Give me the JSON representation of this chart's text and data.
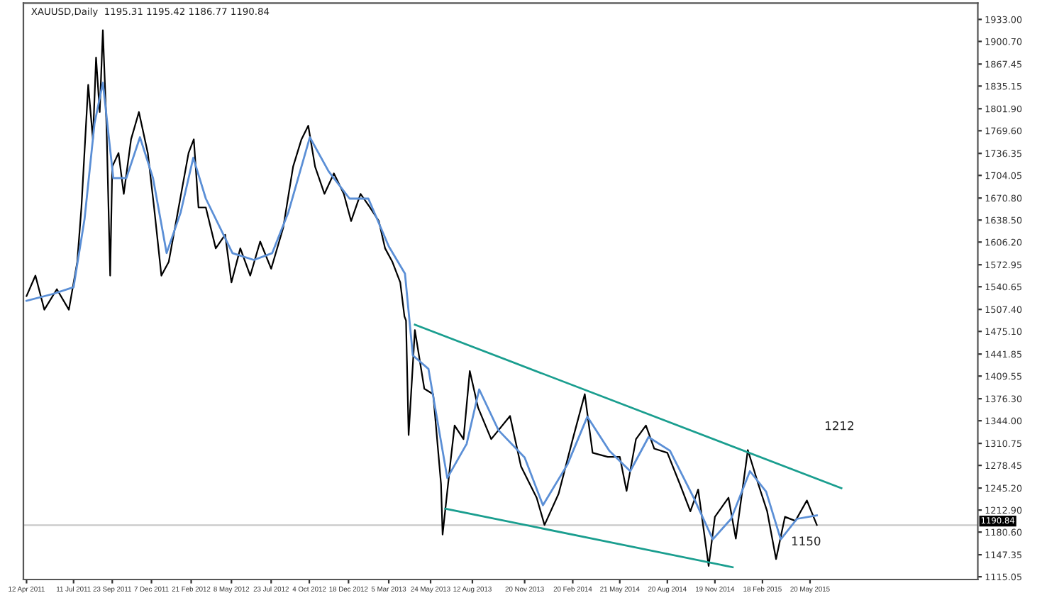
{
  "chart_data": {
    "type": "line",
    "title": "XAUUSD,Daily  1195.31 1195.42 1186.77 1190.84",
    "xlim": [
      "2011-04-06",
      "2016-04-05"
    ],
    "ylim": [
      1111,
      1957
    ],
    "xticks": [
      {
        "value": "2011-04-12",
        "label": "12 Apr 2011"
      },
      {
        "value": "2011-07-11",
        "label": "11 Jul 2011"
      },
      {
        "value": "2011-09-23",
        "label": "23 Sep 2011"
      },
      {
        "value": "2011-12-07",
        "label": "7 Dec 2011"
      },
      {
        "value": "2012-02-21",
        "label": "21 Feb 2012"
      },
      {
        "value": "2012-05-08",
        "label": "8 May 2012"
      },
      {
        "value": "2012-07-23",
        "label": "23 Jul 2012"
      },
      {
        "value": "2012-10-04",
        "label": "4 Oct 2012"
      },
      {
        "value": "2012-12-18",
        "label": "18 Dec 2012"
      },
      {
        "value": "2013-03-05",
        "label": "5 Mar 2013"
      },
      {
        "value": "2013-05-24",
        "label": "24 May 2013"
      },
      {
        "value": "2013-08-12",
        "label": "12 Aug 2013"
      },
      {
        "value": "2013-11-20",
        "label": "20 Nov 2013"
      },
      {
        "value": "2014-02-20",
        "label": "20 Feb 2014"
      },
      {
        "value": "2014-05-21",
        "label": "21 May 2014"
      },
      {
        "value": "2014-08-20",
        "label": "20 Aug 2014"
      },
      {
        "value": "2014-11-19",
        "label": "19 Nov 2014"
      },
      {
        "value": "2015-02-18",
        "label": "18 Feb 2015"
      },
      {
        "value": "2015-05-20",
        "label": "20 May 2015"
      }
    ],
    "yticks": [
      {
        "value": 1933.0,
        "label": "1933.00"
      },
      {
        "value": 1900.7,
        "label": "1900.70"
      },
      {
        "value": 1867.45,
        "label": "1867.45"
      },
      {
        "value": 1835.15,
        "label": "1835.15"
      },
      {
        "value": 1801.9,
        "label": "1801.90"
      },
      {
        "value": 1769.6,
        "label": "1769.60"
      },
      {
        "value": 1736.35,
        "label": "1736.35"
      },
      {
        "value": 1704.05,
        "label": "1704.05"
      },
      {
        "value": 1670.8,
        "label": "1670.80"
      },
      {
        "value": 1638.5,
        "label": "1638.50"
      },
      {
        "value": 1606.2,
        "label": "1606.20"
      },
      {
        "value": 1572.95,
        "label": "1572.95"
      },
      {
        "value": 1540.65,
        "label": "1540.65"
      },
      {
        "value": 1507.4,
        "label": "1507.40"
      },
      {
        "value": 1475.1,
        "label": "1475.10"
      },
      {
        "value": 1441.85,
        "label": "1441.85"
      },
      {
        "value": 1409.55,
        "label": "1409.55"
      },
      {
        "value": 1376.3,
        "label": "1376.30"
      },
      {
        "value": 1344.0,
        "label": "1344.00"
      },
      {
        "value": 1310.75,
        "label": "1310.75"
      },
      {
        "value": 1278.45,
        "label": "1278.45"
      },
      {
        "value": 1245.2,
        "label": "1245.20"
      },
      {
        "value": 1212.9,
        "label": "1212.90"
      },
      {
        "value": 1180.6,
        "label": "1180.60"
      },
      {
        "value": 1147.35,
        "label": "1147.35"
      },
      {
        "value": 1115.05,
        "label": "1115.05"
      }
    ],
    "ref_lines": [
      {
        "axis": "y",
        "value": 1190.84,
        "label": "1190.84",
        "color": "#c8c8c8"
      }
    ],
    "annotations": [
      "1212",
      "1150"
    ],
    "grid": false,
    "legend": false,
    "marker": "none",
    "line_style": "solid",
    "series": [
      {
        "color": "#000000",
        "x": [
          "2011-04-12",
          "2011-04-29",
          "2011-05-16",
          "2011-06-09",
          "2011-07-02",
          "2011-07-18",
          "2011-07-26",
          "2011-08-08",
          "2011-08-17",
          "2011-08-23",
          "2011-08-30",
          "2011-09-05",
          "2011-09-12",
          "2011-09-19",
          "2011-09-23",
          "2011-10-05",
          "2011-10-15",
          "2011-10-29",
          "2011-11-13",
          "2011-11-30",
          "2011-12-12",
          "2011-12-26",
          "2012-01-09",
          "2012-01-28",
          "2012-02-16",
          "2012-02-26",
          "2012-03-06",
          "2012-03-20",
          "2012-04-08",
          "2012-04-26",
          "2012-05-08",
          "2012-05-25",
          "2012-06-13",
          "2012-07-02",
          "2012-07-23",
          "2012-08-15",
          "2012-09-03",
          "2012-09-19",
          "2012-10-02",
          "2012-10-15",
          "2012-11-02",
          "2012-11-20",
          "2012-12-09",
          "2012-12-23",
          "2013-01-10",
          "2013-01-28",
          "2013-02-14",
          "2013-02-26",
          "2013-03-12",
          "2013-03-27",
          "2013-04-04",
          "2013-04-07",
          "2013-04-12",
          "2013-04-24",
          "2013-05-12",
          "2013-05-29",
          "2013-06-13",
          "2013-06-16",
          "2013-07-01",
          "2013-07-09",
          "2013-07-26",
          "2013-08-07",
          "2013-08-23",
          "2013-09-17",
          "2013-10-23",
          "2013-11-13",
          "2013-12-13",
          "2013-12-28",
          "2014-01-24",
          "2014-02-20",
          "2014-03-15",
          "2014-03-30",
          "2014-04-28",
          "2014-05-21",
          "2014-06-03",
          "2014-06-21",
          "2014-07-10",
          "2014-07-26",
          "2014-08-20",
          "2014-09-13",
          "2014-10-03",
          "2014-10-18",
          "2014-11-07",
          "2014-11-19",
          "2014-12-15",
          "2014-12-29",
          "2015-01-21",
          "2015-02-10",
          "2015-02-27",
          "2015-03-16",
          "2015-04-02",
          "2015-04-22",
          "2015-05-14",
          "2015-06-02"
        ],
        "values": [
          1527,
          1557,
          1507,
          1537,
          1507,
          1577,
          1657,
          1837,
          1757,
          1877,
          1797,
          1917,
          1777,
          1557,
          1717,
          1737,
          1677,
          1757,
          1797,
          1737,
          1657,
          1557,
          1577,
          1657,
          1737,
          1757,
          1657,
          1657,
          1597,
          1617,
          1547,
          1597,
          1557,
          1607,
          1567,
          1627,
          1717,
          1757,
          1777,
          1717,
          1677,
          1707,
          1677,
          1637,
          1677,
          1657,
          1637,
          1597,
          1577,
          1547,
          1497,
          1491,
          1323,
          1477,
          1391,
          1383,
          1251,
          1177,
          1283,
          1337,
          1317,
          1417,
          1363,
          1317,
          1351,
          1277,
          1231,
          1191,
          1237,
          1317,
          1383,
          1297,
          1291,
          1291,
          1241,
          1317,
          1337,
          1303,
          1297,
          1251,
          1211,
          1243,
          1131,
          1203,
          1231,
          1171,
          1301,
          1251,
          1211,
          1141,
          1203,
          1197,
          1227,
          1191
        ]
      },
      {
        "color": "#5b8fd6",
        "x": [
          "2011-04-12",
          "2011-06-01",
          "2011-07-11",
          "2011-08-01",
          "2011-08-20",
          "2011-09-05",
          "2011-09-25",
          "2011-10-20",
          "2011-11-15",
          "2011-12-10",
          "2012-01-05",
          "2012-02-01",
          "2012-02-25",
          "2012-03-20",
          "2012-05-10",
          "2012-06-20",
          "2012-07-25",
          "2012-08-25",
          "2012-10-05",
          "2012-11-10",
          "2012-12-20",
          "2013-01-25",
          "2013-03-05",
          "2013-04-05",
          "2013-04-20",
          "2013-05-20",
          "2013-06-25",
          "2013-08-01",
          "2013-08-25",
          "2013-10-01",
          "2013-11-20",
          "2013-12-25",
          "2014-02-10",
          "2014-03-20",
          "2014-05-01",
          "2014-06-10",
          "2014-07-15",
          "2014-08-25",
          "2014-10-10",
          "2014-11-15",
          "2014-12-20",
          "2015-01-25",
          "2015-02-25",
          "2015-03-25",
          "2015-04-25",
          "2015-06-02"
        ],
        "values": [
          1520,
          1530,
          1540,
          1640,
          1780,
          1840,
          1700,
          1700,
          1760,
          1700,
          1590,
          1650,
          1730,
          1670,
          1590,
          1580,
          1590,
          1650,
          1760,
          1710,
          1670,
          1670,
          1600,
          1560,
          1440,
          1420,
          1260,
          1310,
          1390,
          1330,
          1290,
          1220,
          1280,
          1350,
          1300,
          1270,
          1320,
          1300,
          1230,
          1170,
          1200,
          1270,
          1240,
          1170,
          1200,
          1205
        ]
      },
      {
        "color": "#1a9e8f",
        "x": [
          "2013-04-24",
          "2015-07-19"
        ],
        "values": [
          1485,
          1245
        ]
      },
      {
        "color": "#1a9e8f",
        "x": [
          "2013-06-21",
          "2014-12-23"
        ],
        "values": [
          1215,
          1129
        ]
      }
    ]
  }
}
